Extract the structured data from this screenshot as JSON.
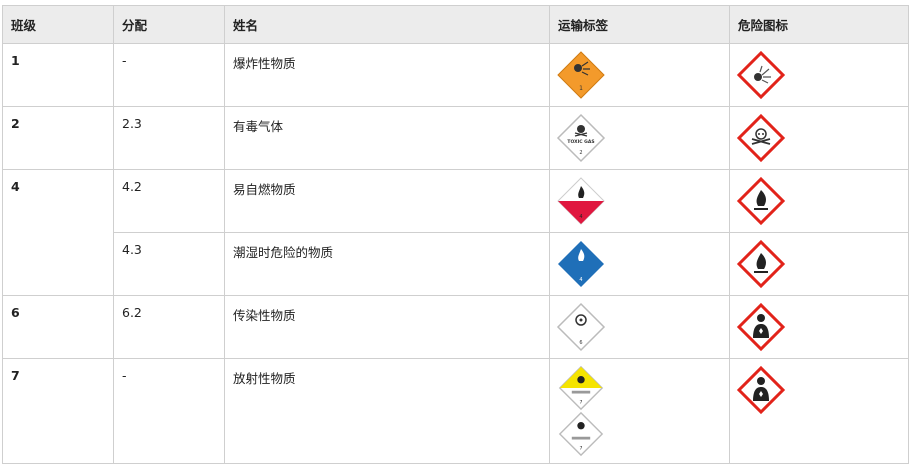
{
  "headers": [
    "班级",
    "分配",
    "姓名",
    "运输标签",
    "危险图标"
  ],
  "rows": [
    {
      "class": "1",
      "division": "-",
      "name": "爆炸性物质",
      "transport": [
        "explosive-label-icon"
      ],
      "hazard": "exploding-bomb-icon",
      "label_text": "1"
    },
    {
      "class": "2",
      "division": "2.3",
      "name": "有毒气体",
      "transport": [
        "toxic-gas-label-icon"
      ],
      "hazard": "skull-crossbones-icon",
      "label_text": "TOXIC GAS",
      "label_num": "2"
    },
    {
      "class": "4",
      "division": "4.2",
      "name": "易自燃物质",
      "transport": [
        "spontaneously-combustible-label-icon"
      ],
      "hazard": "flame-icon",
      "label_num": "4"
    },
    {
      "class": "",
      "division": "4.3",
      "name": "潮湿时危险的物质",
      "transport": [
        "dangerous-when-wet-label-icon"
      ],
      "hazard": "flame-icon",
      "label_num": "4"
    },
    {
      "class": "6",
      "division": "6.2",
      "name": "传染性物质",
      "transport": [
        "infectious-substance-label-icon"
      ],
      "hazard": "health-hazard-icon",
      "label_num": "6"
    },
    {
      "class": "7",
      "division": "-",
      "name": "放射性物质",
      "transport": [
        "radioactive-yellow-label-icon",
        "radioactive-white-label-icon"
      ],
      "hazard": "health-hazard-icon",
      "label_num": "7"
    }
  ],
  "colors": {
    "ghs_red": "#e2231a",
    "explosive_orange": "#f39a2b",
    "combustible_red": "#e0173f",
    "wet_blue": "#1f6fb8",
    "radioactive_yellow": "#f5e400"
  }
}
